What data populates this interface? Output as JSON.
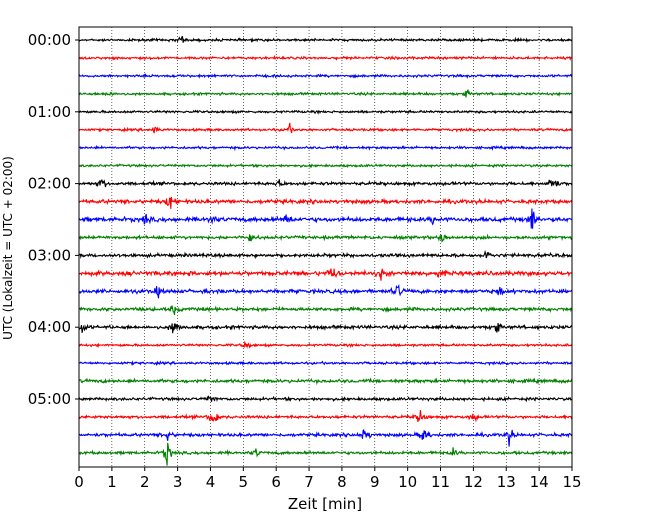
{
  "chart_data": {
    "type": "line",
    "xlabel": "Zeit  [min]",
    "ylabel": "UTC (Lokalzeit = UTC + 02:00)",
    "xlim": [
      0,
      15
    ],
    "x_ticks": [
      0,
      1,
      2,
      3,
      4,
      5,
      6,
      7,
      8,
      9,
      10,
      11,
      12,
      13,
      14,
      15
    ],
    "y_tick_labels": [
      "00:00",
      "01:00",
      "02:00",
      "03:00",
      "04:00",
      "05:00"
    ],
    "grid": "vertical dotted at each minute",
    "trace_interval_minutes": 15,
    "trace_colors": [
      "#000000",
      "#ff0000",
      "#0000ff",
      "#008000"
    ],
    "traces": [
      {
        "start": "00:00",
        "amp": 1.0,
        "events": [
          [
            3.1,
            2.2
          ]
        ]
      },
      {
        "start": "00:15",
        "amp": 1.0,
        "events": []
      },
      {
        "start": "00:30",
        "amp": 1.0,
        "events": []
      },
      {
        "start": "00:45",
        "amp": 1.0,
        "events": [
          [
            0.9,
            1.6
          ],
          [
            11.8,
            1.8
          ]
        ]
      },
      {
        "start": "01:00",
        "amp": 1.0,
        "events": []
      },
      {
        "start": "01:15",
        "amp": 1.0,
        "events": [
          [
            2.3,
            2.0
          ],
          [
            6.4,
            2.2
          ]
        ]
      },
      {
        "start": "01:30",
        "amp": 1.0,
        "events": []
      },
      {
        "start": "01:45",
        "amp": 1.0,
        "events": []
      },
      {
        "start": "02:00",
        "amp": 1.3,
        "events": [
          [
            0.7,
            3.0
          ],
          [
            6.1,
            1.8
          ],
          [
            14.4,
            6.0
          ]
        ]
      },
      {
        "start": "02:15",
        "amp": 1.6,
        "events": [
          [
            2.8,
            4.5
          ]
        ]
      },
      {
        "start": "02:30",
        "amp": 1.8,
        "events": [
          [
            2.0,
            2.5
          ],
          [
            4.0,
            2.5
          ],
          [
            6.3,
            2.5
          ],
          [
            10.8,
            2.5
          ],
          [
            13.8,
            6.5
          ]
        ]
      },
      {
        "start": "02:45",
        "amp": 1.3,
        "events": [
          [
            5.2,
            2.5
          ],
          [
            11.1,
            3.5
          ]
        ]
      },
      {
        "start": "03:00",
        "amp": 1.4,
        "events": [
          [
            12.4,
            2.5
          ]
        ]
      },
      {
        "start": "03:15",
        "amp": 1.8,
        "events": [
          [
            7.7,
            5.0
          ],
          [
            9.2,
            2.5
          ],
          [
            10.9,
            2.0
          ]
        ]
      },
      {
        "start": "03:30",
        "amp": 1.6,
        "events": [
          [
            2.4,
            2.2
          ],
          [
            9.7,
            3.5
          ],
          [
            12.8,
            2.0
          ]
        ]
      },
      {
        "start": "03:45",
        "amp": 1.4,
        "events": [
          [
            2.9,
            2.5
          ]
        ]
      },
      {
        "start": "04:00",
        "amp": 1.4,
        "events": [
          [
            0.1,
            3.5
          ],
          [
            2.9,
            4.5
          ],
          [
            12.7,
            3.5
          ]
        ]
      },
      {
        "start": "04:15",
        "amp": 1.0,
        "events": [
          [
            5.1,
            2.2
          ]
        ]
      },
      {
        "start": "04:30",
        "amp": 1.0,
        "events": []
      },
      {
        "start": "04:45",
        "amp": 1.4,
        "events": []
      },
      {
        "start": "05:00",
        "amp": 1.2,
        "events": [
          [
            4.0,
            2.0
          ]
        ]
      },
      {
        "start": "05:15",
        "amp": 1.2,
        "events": [
          [
            4.1,
            6.5
          ],
          [
            10.4,
            4.5
          ],
          [
            12.0,
            2.0
          ]
        ]
      },
      {
        "start": "05:30",
        "amp": 1.3,
        "events": [
          [
            2.7,
            3.0
          ],
          [
            8.7,
            4.5
          ],
          [
            10.5,
            5.5
          ],
          [
            13.1,
            4.5
          ]
        ]
      },
      {
        "start": "05:45",
        "amp": 1.2,
        "events": [
          [
            2.7,
            7.0
          ],
          [
            5.4,
            2.0
          ],
          [
            11.4,
            2.0
          ]
        ]
      }
    ]
  }
}
